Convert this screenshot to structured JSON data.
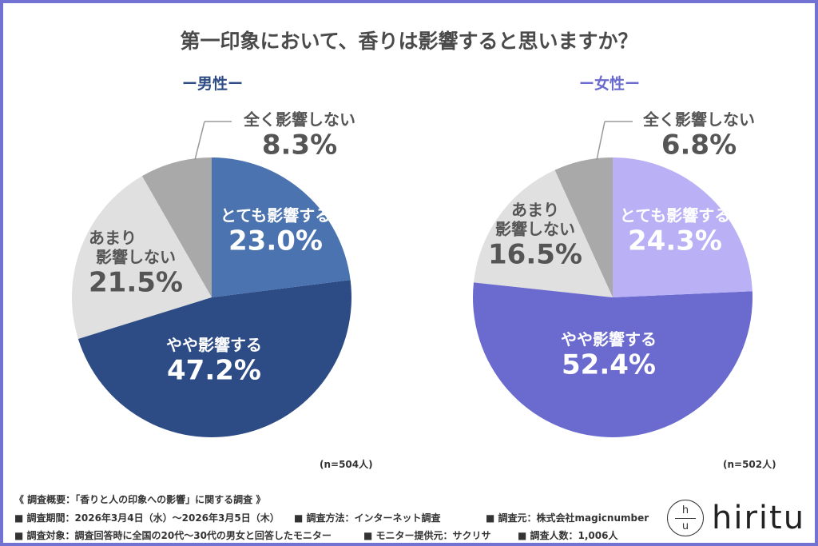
{
  "title": "第一印象において、香りは影響すると思いますか？",
  "colors": {
    "border": "#7272d2",
    "male_label": "#2d4b85",
    "female_label": "#6b6bcf"
  },
  "chart_data": [
    {
      "type": "pie",
      "name": "ー男性ー",
      "n": "(n=504人)",
      "start": "top",
      "direction": "clockwise",
      "categories": [
        "とても影響する",
        "やや影響する",
        "あまり影響しない",
        "全く影響しない"
      ],
      "values": [
        23.0,
        47.2,
        21.5,
        8.3
      ],
      "value_labels": [
        "23.0%",
        "47.2%",
        "21.5%",
        "8.3%"
      ],
      "colors": [
        "#4a73b0",
        "#2d4b85",
        "#e0e0e0",
        "#a9a9a9"
      ]
    },
    {
      "type": "pie",
      "name": "ー女性ー",
      "n": "(n=502人)",
      "start": "top",
      "direction": "clockwise",
      "categories": [
        "とても影響する",
        "やや影響する",
        "あまり影響しない",
        "全く影響しない"
      ],
      "values": [
        24.3,
        52.4,
        16.5,
        6.8
      ],
      "value_labels": [
        "24.3%",
        "52.4%",
        "16.5%",
        "6.8%"
      ],
      "colors": [
        "#bab0f6",
        "#6b6bcf",
        "#e0e0e0",
        "#a9a9a9"
      ]
    }
  ],
  "label_lines": {
    "amari_1": "あまり",
    "amari_2": "影響しない"
  },
  "footer": {
    "summary": "《 調査概要：「香りと人の印象への影響」に関する調査 》",
    "period": "■ 調査期間：2026年3月4日（水）～2026年3月5日（木）",
    "method": "■ 調査方法：インターネット調査",
    "source": "■ 調査元：株式会社magicnumber",
    "target": "■ 調査対象：調査回答時に全国の20代～30代の男女と回答したモニター",
    "provider": "■ モニター提供元：サクリサ",
    "count": "■ 調査人数：1,006人"
  },
  "logo": {
    "text": "hiritu",
    "mark_top": "h",
    "mark_bottom": "u"
  }
}
